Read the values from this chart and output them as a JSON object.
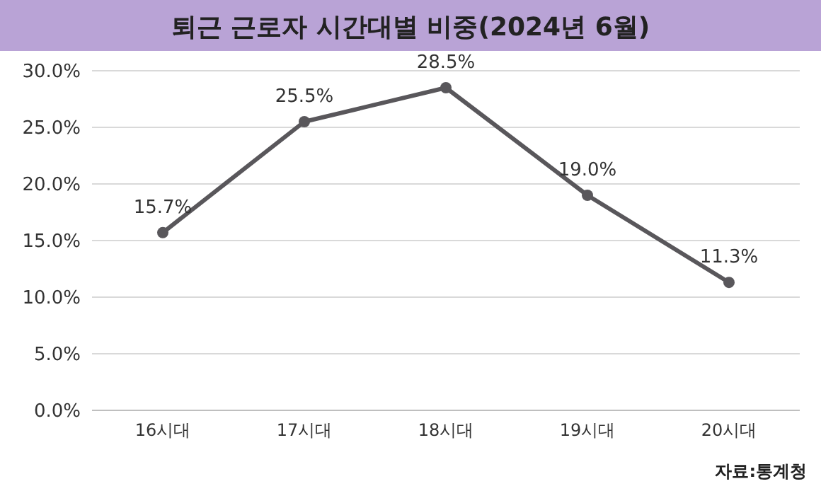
{
  "chart_data": {
    "type": "line",
    "title": "퇴근 근로자 시간대별 비중(2024년 6월)",
    "categories": [
      "16시대",
      "17시대",
      "18시대",
      "19시대",
      "20시대"
    ],
    "values": [
      15.7,
      25.5,
      28.5,
      19.0,
      11.3
    ],
    "value_labels": [
      "15.7%",
      "25.5%",
      "28.5%",
      "19.0%",
      "11.3%"
    ],
    "color": "#59575b",
    "marker": "circle",
    "grid": "y",
    "ylim": [
      0,
      30
    ],
    "yticks": [
      {
        "value": 0,
        "label": "0.0%"
      },
      {
        "value": 5,
        "label": "5.0%"
      },
      {
        "value": 10,
        "label": "10.0%"
      },
      {
        "value": 15,
        "label": "15.0%"
      },
      {
        "value": 20,
        "label": "20.0%"
      },
      {
        "value": 25,
        "label": "25.0%"
      },
      {
        "value": 30,
        "label": "30.0%"
      }
    ],
    "annotations": [
      "자료:통계청"
    ]
  }
}
